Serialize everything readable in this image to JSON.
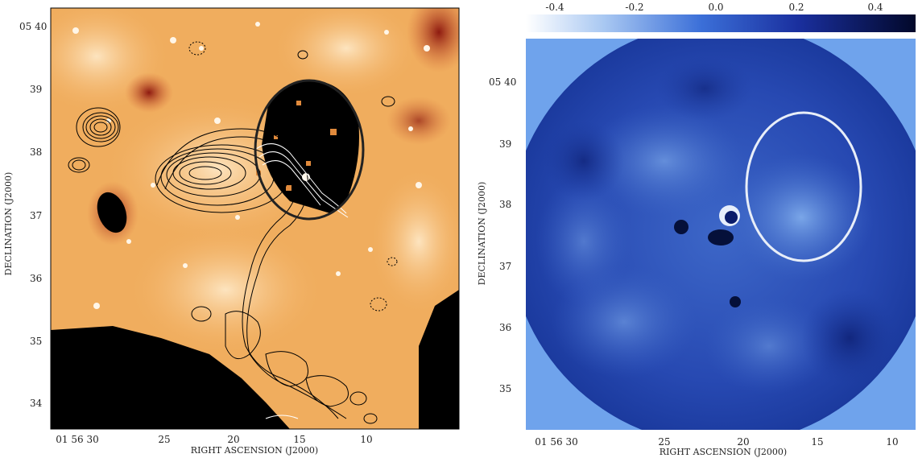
{
  "left_panel": {
    "y_axis_label": "DECLINATION (J2000)",
    "x_axis_label": "RIGHT ASCENSION (J2000)",
    "y_ticks": [
      "05 40",
      "39",
      "38",
      "37",
      "36",
      "35",
      "34"
    ],
    "x_ticks": [
      "01 56 30",
      "25",
      "20",
      "15",
      "10"
    ],
    "colors": {
      "background": "#f2b061",
      "dark": "#b22a1a",
      "black": "#000000"
    }
  },
  "right_panel": {
    "y_axis_label": "DECLINATION (J2000)",
    "x_axis_label": "RIGHT ASCENSION (J2000)",
    "y_ticks": [
      "05 40",
      "39",
      "38",
      "37",
      "36",
      "35"
    ],
    "x_ticks": [
      "01 56 30",
      "25",
      "20",
      "15",
      "10"
    ],
    "colorbar_ticks": [
      "-0.4",
      "-0.2",
      "0.0",
      "0.2",
      "0.4"
    ],
    "colors": {
      "disk": "#1e3fa8",
      "light": "#6a9ae0",
      "dark": "#0a1a60",
      "ellipse": "#e8eef8"
    }
  }
}
